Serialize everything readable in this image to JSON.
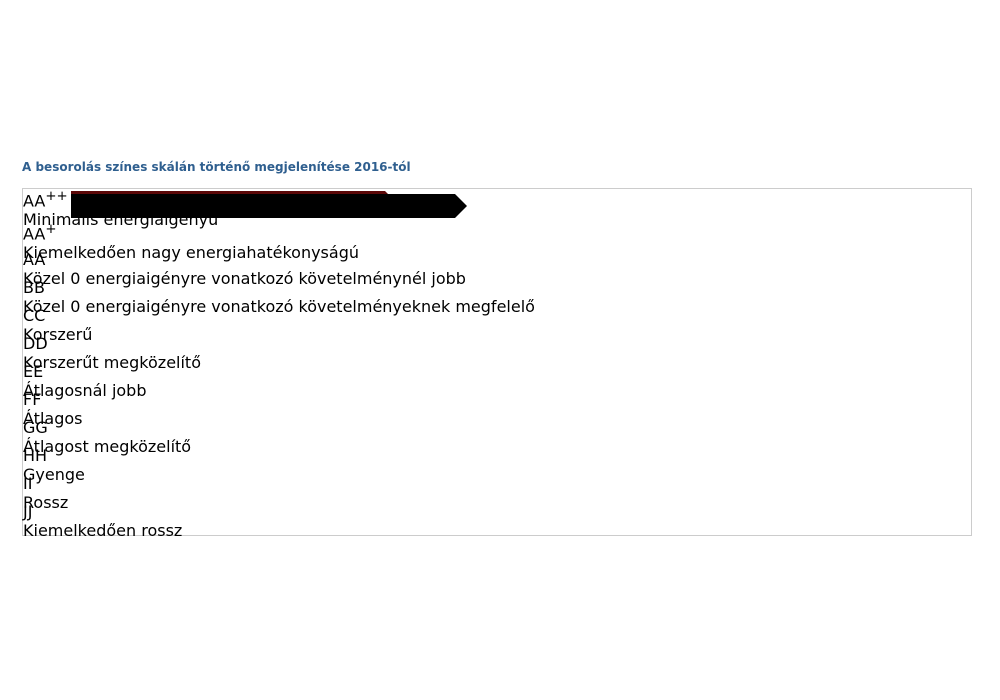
{
  "header": {
    "title": "A besorolás színes skálán történő megjelenítése 2016-tól"
  },
  "table": {
    "rows": [
      {
        "label": "AA",
        "sup": "++",
        "description": "Minimális energiaigényű"
      },
      {
        "label": "AA",
        "sup": "+",
        "description": "Kiemelkedően nagy energiahatékonyságú"
      },
      {
        "label": "AA",
        "description": "Közel 0 energiaigényre vonatkozó követelménynél jobb"
      },
      {
        "label": "BB",
        "description": "Közel 0 energiaigényre vonatkozó követelményeknek megfelelő"
      },
      {
        "label": "CC",
        "description": "Korszerű"
      },
      {
        "label": "DD",
        "description": "Korszerűt megközelítő"
      },
      {
        "label": "EE",
        "description": "Átlagosnál jobb"
      },
      {
        "label": "FF",
        "description": "Átlagos"
      },
      {
        "label": "GG",
        "description": "Átlagost megközelítő"
      },
      {
        "label": "HH",
        "description": "Gyenge"
      },
      {
        "label": "II",
        "description": "Rossz"
      },
      {
        "label": "JJ",
        "description": "Kiemelkedően rossz"
      }
    ]
  }
}
